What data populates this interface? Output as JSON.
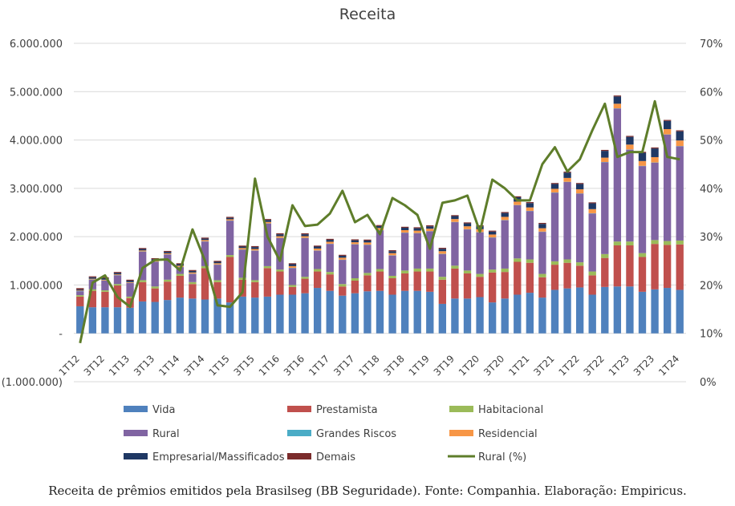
{
  "caption": "Receita de prêmios emitidos pela Brasilseg (BB Seguridade). Fonte: Companhia. Elaboração: Empiricus.",
  "chart_data": {
    "type": "bar",
    "stacked": true,
    "title": "Receita",
    "xlabel": "",
    "ylabel": "",
    "ylim": [
      -1000000,
      6000000
    ],
    "y_ticks": [
      -1000000,
      0,
      1000000,
      2000000,
      3000000,
      4000000,
      5000000,
      6000000
    ],
    "y_tick_labels": [
      "(1.000.000)",
      "-",
      "1.000.000",
      "2.000.000",
      "3.000.000",
      "4.000.000",
      "5.000.000",
      "6.000.000"
    ],
    "y2lim": [
      0,
      70
    ],
    "y2_ticks": [
      0,
      10,
      20,
      30,
      40,
      50,
      60,
      70
    ],
    "y2_tick_labels": [
      "0%",
      "10%",
      "20%",
      "30%",
      "40%",
      "50%",
      "60%",
      "70%"
    ],
    "grid": true,
    "legend_position": "bottom",
    "categories": [
      "1T12",
      "2T12",
      "3T12",
      "4T12",
      "1T13",
      "2T13",
      "3T13",
      "4T13",
      "1T14",
      "2T14",
      "3T14",
      "4T14",
      "1T15",
      "2T15",
      "3T15",
      "4T15",
      "1T16",
      "2T16",
      "3T16",
      "4T16",
      "1T17",
      "2T17",
      "3T17",
      "4T17",
      "1T18",
      "2T18",
      "3T18",
      "4T18",
      "1T19",
      "2T19",
      "3T19",
      "4T19",
      "1T20",
      "2T20",
      "3T20",
      "4T20",
      "1T21",
      "2T21",
      "3T21",
      "4T21",
      "1T22",
      "2T22",
      "3T22",
      "4T22",
      "1T23",
      "2T23",
      "3T23",
      "4T23",
      "1T24"
    ],
    "x_tick_labels": [
      "1T12",
      "3T12",
      "1T13",
      "3T13",
      "1T14",
      "3T14",
      "1T15",
      "3T15",
      "1T16",
      "3T16",
      "1T17",
      "3T17",
      "1T18",
      "3T18",
      "1T19",
      "3T19",
      "1T20",
      "3T20",
      "1T21",
      "3T21",
      "1T22",
      "3T22",
      "1T23",
      "3T23",
      "1T24"
    ],
    "series": [
      {
        "name": "Vida",
        "color": "#4f81bd",
        "axis": "left",
        "values": [
          560000,
          540000,
          540000,
          540000,
          530000,
          660000,
          650000,
          690000,
          740000,
          720000,
          700000,
          720000,
          640000,
          760000,
          740000,
          760000,
          800000,
          800000,
          830000,
          940000,
          880000,
          780000,
          830000,
          870000,
          880000,
          800000,
          880000,
          880000,
          860000,
          610000,
          720000,
          720000,
          750000,
          640000,
          720000,
          800000,
          840000,
          740000,
          900000,
          930000,
          950000,
          800000,
          960000,
          970000,
          970000,
          860000,
          910000,
          940000,
          900000
        ]
      },
      {
        "name": "Prestamista",
        "color": "#c0504d",
        "axis": "left",
        "values": [
          200000,
          340000,
          320000,
          450000,
          200000,
          400000,
          280000,
          380000,
          450000,
          300000,
          650000,
          340000,
          940000,
          350000,
          320000,
          590000,
          480000,
          160000,
          300000,
          340000,
          340000,
          190000,
          260000,
          330000,
          400000,
          340000,
          360000,
          400000,
          420000,
          500000,
          620000,
          520000,
          420000,
          620000,
          550000,
          680000,
          620000,
          420000,
          520000,
          530000,
          450000,
          400000,
          600000,
          850000,
          850000,
          720000,
          940000,
          890000,
          940000
        ]
      },
      {
        "name": "Habitacional",
        "color": "#9bbb59",
        "axis": "left",
        "values": [
          30000,
          30000,
          30000,
          30000,
          30000,
          40000,
          40000,
          40000,
          40000,
          40000,
          40000,
          40000,
          40000,
          40000,
          40000,
          40000,
          40000,
          40000,
          40000,
          50000,
          50000,
          50000,
          50000,
          50000,
          50000,
          50000,
          60000,
          60000,
          60000,
          60000,
          60000,
          60000,
          60000,
          60000,
          70000,
          70000,
          70000,
          70000,
          70000,
          70000,
          70000,
          80000,
          80000,
          80000,
          80000,
          80000,
          80000,
          80000,
          80000
        ]
      },
      {
        "name": "Rural",
        "color": "#8064a2",
        "axis": "left",
        "values": [
          80000,
          200000,
          200000,
          180000,
          280000,
          590000,
          510000,
          520000,
          140000,
          170000,
          510000,
          320000,
          710000,
          580000,
          610000,
          880000,
          650000,
          350000,
          800000,
          380000,
          580000,
          500000,
          700000,
          580000,
          800000,
          420000,
          780000,
          730000,
          770000,
          470000,
          900000,
          850000,
          860000,
          660000,
          1000000,
          1100000,
          1000000,
          870000,
          1420000,
          1600000,
          1420000,
          1200000,
          1900000,
          2750000,
          1900000,
          1800000,
          1600000,
          2200000,
          1950000
        ]
      },
      {
        "name": "Grandes Riscos",
        "color": "#4bacc6",
        "axis": "left",
        "values": [
          5000,
          5000,
          5000,
          5000,
          5000,
          5000,
          5000,
          5000,
          5000,
          5000,
          5000,
          5000,
          5000,
          5000,
          5000,
          5000,
          5000,
          5000,
          5000,
          5000,
          5000,
          5000,
          5000,
          5000,
          5000,
          5000,
          5000,
          5000,
          5000,
          5000,
          5000,
          5000,
          5000,
          5000,
          5000,
          5000,
          5000,
          5000,
          5000,
          5000,
          5000,
          5000,
          5000,
          5000,
          5000,
          5000,
          5000,
          5000,
          5000
        ]
      },
      {
        "name": "Residencial",
        "color": "#f79646",
        "axis": "left",
        "values": [
          10000,
          15000,
          15000,
          15000,
          15000,
          20000,
          20000,
          20000,
          25000,
          25000,
          25000,
          25000,
          25000,
          30000,
          30000,
          30000,
          35000,
          35000,
          35000,
          40000,
          40000,
          40000,
          40000,
          45000,
          45000,
          45000,
          50000,
          50000,
          50000,
          55000,
          60000,
          60000,
          60000,
          60000,
          65000,
          70000,
          70000,
          70000,
          75000,
          80000,
          85000,
          85000,
          90000,
          95000,
          100000,
          100000,
          110000,
          110000,
          115000
        ]
      },
      {
        "name": "Empresarial/Massificados",
        "color": "#1f3864",
        "axis": "left",
        "values": [
          20000,
          30000,
          30000,
          30000,
          30000,
          30000,
          30000,
          30000,
          30000,
          30000,
          30000,
          30000,
          30000,
          30000,
          40000,
          40000,
          40000,
          40000,
          40000,
          40000,
          40000,
          40000,
          40000,
          40000,
          40000,
          40000,
          50000,
          50000,
          50000,
          50000,
          60000,
          60000,
          60000,
          60000,
          80000,
          90000,
          90000,
          90000,
          100000,
          110000,
          110000,
          120000,
          140000,
          150000,
          160000,
          170000,
          180000,
          170000,
          190000
        ]
      },
      {
        "name": "Demais",
        "color": "#7b2c2c",
        "axis": "left",
        "values": [
          30000,
          20000,
          20000,
          20000,
          20000,
          20000,
          20000,
          20000,
          20000,
          20000,
          20000,
          20000,
          20000,
          20000,
          20000,
          20000,
          20000,
          20000,
          20000,
          20000,
          20000,
          20000,
          20000,
          20000,
          20000,
          20000,
          20000,
          20000,
          20000,
          20000,
          20000,
          20000,
          20000,
          20000,
          20000,
          20000,
          20000,
          20000,
          20000,
          20000,
          20000,
          20000,
          20000,
          20000,
          20000,
          20000,
          20000,
          20000,
          20000
        ]
      },
      {
        "name": "Rural (%)",
        "color": "#5e7d2a",
        "axis": "right",
        "type": "line",
        "values": [
          8,
          20.5,
          22,
          17.5,
          15.5,
          23.5,
          25.2,
          25.3,
          23,
          31.5,
          25,
          15.8,
          15.5,
          18.5,
          42,
          30,
          25,
          36.5,
          32.2,
          32.5,
          34.8,
          39.5,
          33,
          34.5,
          30.5,
          38,
          36.5,
          34.5,
          27.5,
          37,
          37.5,
          38.5,
          31,
          41.8,
          40,
          37.5,
          37.5,
          45,
          48.5,
          43.5,
          46,
          52,
          57.5,
          46.5,
          47.5,
          47.5,
          58,
          46.5,
          46
        ]
      }
    ]
  }
}
